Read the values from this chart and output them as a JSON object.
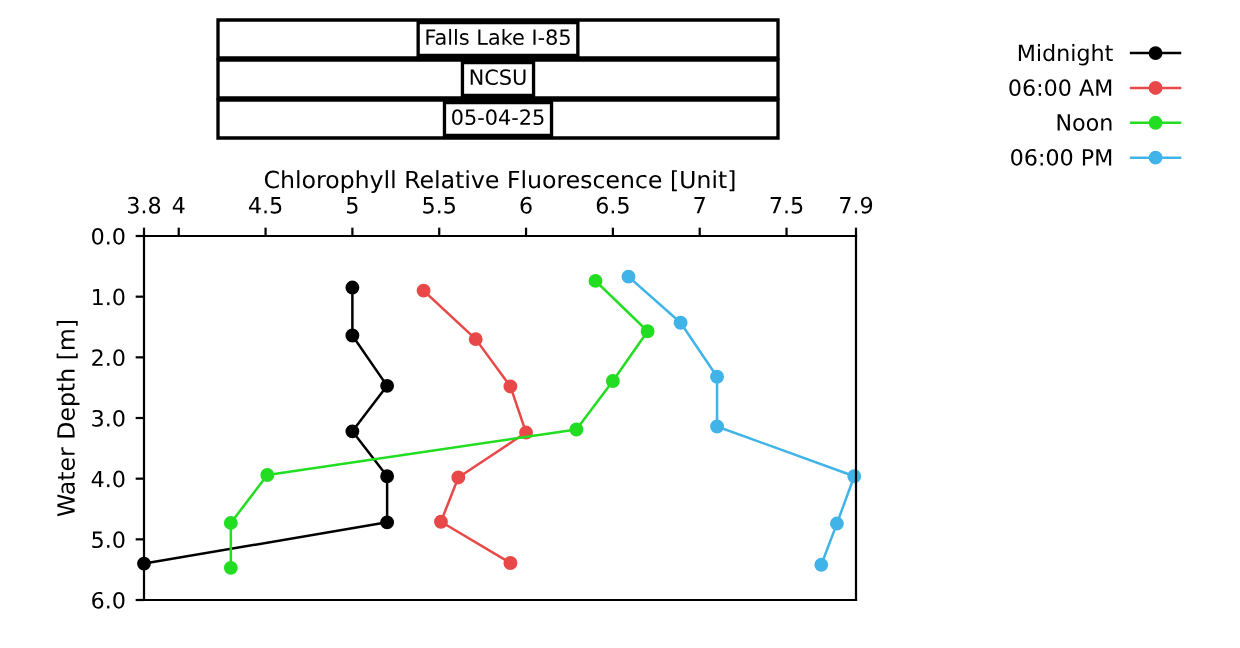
{
  "chart_data": {
    "type": "line",
    "title": "Falls Lake I-85",
    "subtitle": "NCSU",
    "annotations": [
      "05-04-25"
    ],
    "xlabel": "Chlorophyll Relative Fluorescence [Unit]",
    "ylabel": "Water Depth [m]",
    "xlim": [
      3.8,
      7.9
    ],
    "xticks": [
      3.8,
      4,
      4.5,
      5,
      5.5,
      6,
      6.5,
      7,
      7.5,
      7.9
    ],
    "ylim": [
      6,
      0
    ],
    "yticks": [
      {
        "value": 0,
        "label": "0.0"
      },
      {
        "value": 1,
        "label": "1.0"
      },
      {
        "value": 2,
        "label": "2.0"
      },
      {
        "value": 3,
        "label": "3.0"
      },
      {
        "value": 4,
        "label": "4.0"
      },
      {
        "value": 5,
        "label": "5.0"
      },
      {
        "value": 6,
        "label": "6.0"
      }
    ],
    "marker": "circle",
    "line_style": "solid",
    "grid": false,
    "legend": "top right",
    "series": [
      {
        "name": "Midnight",
        "color": "#000000",
        "x": [
          5.0,
          5.0,
          5.2,
          5.0,
          5.2,
          5.2,
          3.8
        ],
        "values": [
          0.85,
          1.64,
          2.47,
          3.22,
          3.96,
          4.72,
          5.4
        ]
      },
      {
        "name": "06:00 AM",
        "color": "#e84848",
        "x": [
          5.41,
          5.71,
          5.91,
          6.0,
          5.61,
          5.51,
          5.91
        ],
        "values": [
          0.9,
          1.7,
          2.48,
          3.24,
          3.98,
          4.71,
          5.39
        ]
      },
      {
        "name": "Noon",
        "color": "#22dd22",
        "x": [
          6.4,
          6.7,
          6.5,
          6.29,
          4.51,
          4.3,
          4.3
        ],
        "values": [
          0.74,
          1.57,
          2.39,
          3.19,
          3.94,
          4.73,
          5.47
        ]
      },
      {
        "name": "06:00 PM",
        "color": "#40b4e8",
        "x": [
          6.59,
          6.89,
          7.1,
          7.1,
          7.89,
          7.79,
          7.7
        ],
        "values": [
          0.67,
          1.43,
          2.32,
          3.14,
          3.96,
          4.74,
          5.42
        ]
      }
    ]
  }
}
